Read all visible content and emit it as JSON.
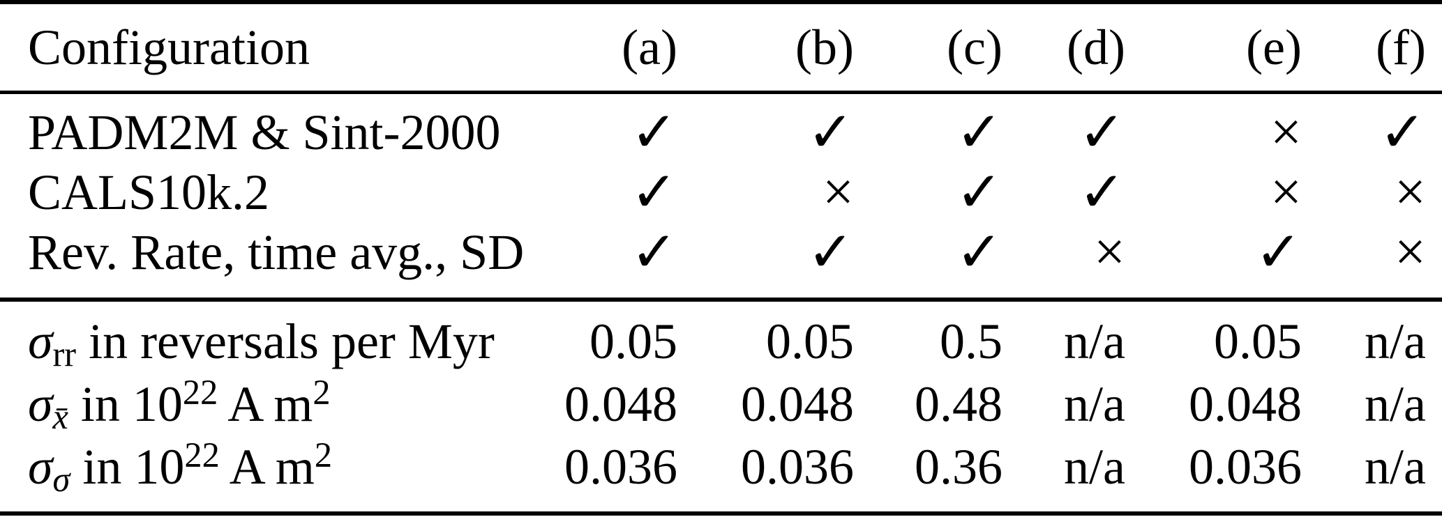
{
  "header": {
    "configuration_label": "Configuration",
    "columns": [
      "(a)",
      "(b)",
      "(c)",
      "(d)",
      "(e)",
      "(f)"
    ]
  },
  "check_rows": [
    {
      "label": "PADM2M & Sint-2000",
      "values": [
        "✓",
        "✓",
        "✓",
        "✓",
        "×",
        "✓"
      ]
    },
    {
      "label": "CALS10k.2",
      "values": [
        "✓",
        "×",
        "✓",
        "✓",
        "×",
        "×"
      ]
    },
    {
      "label": "Rev. Rate, time avg., SD",
      "values": [
        "✓",
        "✓",
        "✓",
        "×",
        "✓",
        "×"
      ]
    }
  ],
  "param_rows": [
    {
      "sigma": "σ",
      "sub": "rr",
      "rest": " in reversals per Myr",
      "values": [
        "0.05",
        "0.05",
        "0.5",
        "n/a",
        "0.05",
        "n/a"
      ]
    },
    {
      "sigma": "σ",
      "sub": "x̄",
      "unit_prefix": " in 10",
      "exponent": "22",
      "unit_mid": " A m",
      "exponent2": "2",
      "values": [
        "0.048",
        "0.048",
        "0.48",
        "n/a",
        "0.048",
        "n/a"
      ]
    },
    {
      "sigma": "σ",
      "sub": "σ",
      "unit_prefix": " in 10",
      "exponent": "22",
      "unit_mid": " A m",
      "exponent2": "2",
      "values": [
        "0.036",
        "0.036",
        "0.36",
        "n/a",
        "0.036",
        "n/a"
      ]
    }
  ],
  "chart_data": {
    "type": "table",
    "title": "Configuration table",
    "columns": [
      "Configuration",
      "(a)",
      "(b)",
      "(c)",
      "(d)",
      "(e)",
      "(f)"
    ],
    "rows": [
      [
        "PADM2M & Sint-2000",
        "check",
        "check",
        "check",
        "check",
        "cross",
        "check"
      ],
      [
        "CALS10k.2",
        "check",
        "cross",
        "check",
        "check",
        "cross",
        "cross"
      ],
      [
        "Rev. Rate, time avg., SD",
        "check",
        "check",
        "check",
        "cross",
        "check",
        "cross"
      ],
      [
        "σ_rr in reversals per Myr",
        "0.05",
        "0.05",
        "0.5",
        "n/a",
        "0.05",
        "n/a"
      ],
      [
        "σ_x̄ in 10^22 A m^2",
        "0.048",
        "0.048",
        "0.48",
        "n/a",
        "0.048",
        "n/a"
      ],
      [
        "σ_σ in 10^22 A m^2",
        "0.036",
        "0.036",
        "0.36",
        "n/a",
        "0.036",
        "n/a"
      ]
    ]
  },
  "colors": {
    "text": "#000000",
    "background": "#ffffff",
    "rule": "#000000"
  }
}
